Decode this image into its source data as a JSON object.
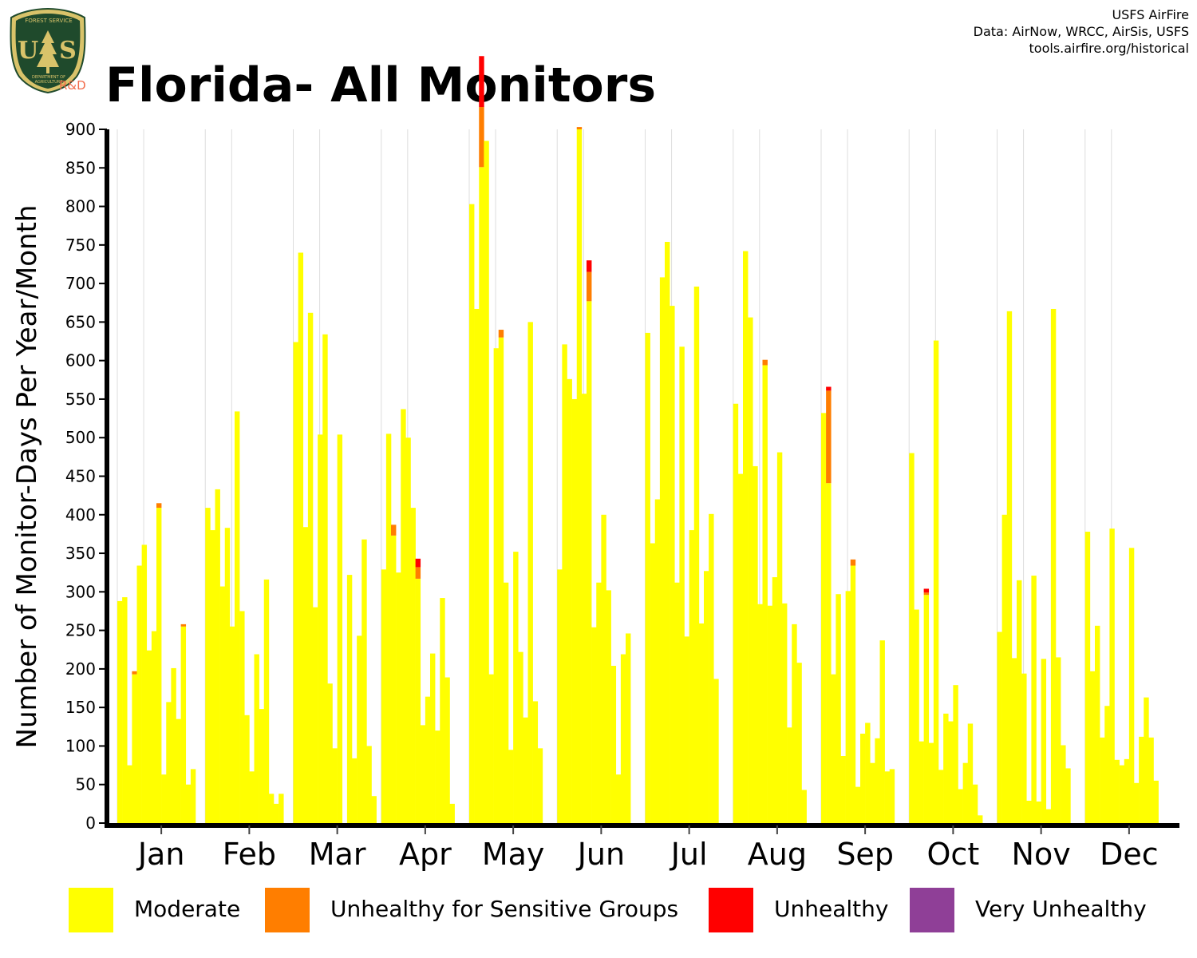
{
  "header": {
    "title": "Florida- All Monitors",
    "credits": [
      "USFS AirFire",
      "Data: AirNow, WRCC, AirSis, USFS",
      "tools.airfire.org/historical"
    ],
    "logo_text": "FOREST SERVICE",
    "logo_letters": "US",
    "logo_bottom_text": "DEPARTMENT OF AGRICULTURE",
    "logo_rd": "R&D"
  },
  "colors": {
    "moderate": "#ffff00",
    "usg": "#ff7e00",
    "unhealthy": "#ff0000",
    "very_unhealthy": "#8f3f97",
    "logo_green": "#1f4a2c",
    "logo_gold": "#d9c36a"
  },
  "legend": [
    {
      "label": "Moderate",
      "color": "#ffff00"
    },
    {
      "label": "Unhealthy for Sensitive Groups",
      "color": "#ff7e00"
    },
    {
      "label": "Unhealthy",
      "color": "#ff0000"
    },
    {
      "label": "Very Unhealthy",
      "color": "#8f3f97"
    }
  ],
  "chart_data": {
    "type": "bar",
    "stacked": true,
    "ylabel": "Number of Monitor-Days Per Year/Month",
    "xlabel": "",
    "ylim": [
      0,
      900
    ],
    "yticks": [
      0,
      50,
      100,
      150,
      200,
      250,
      300,
      350,
      400,
      450,
      500,
      550,
      600,
      650,
      700,
      750,
      800,
      850,
      900
    ],
    "categories": [
      "Jan",
      "Feb",
      "Mar",
      "Apr",
      "May",
      "Jun",
      "Jul",
      "Aug",
      "Sep",
      "Oct",
      "Nov",
      "Dec"
    ],
    "bars_per_month": 18,
    "grid": "vertical",
    "legend_position": "bottom",
    "series": [
      {
        "name": "Moderate",
        "values": [
          [
            288,
            293,
            75,
            193,
            334,
            361,
            224,
            249,
            409,
            63,
            157,
            201,
            135,
            255,
            50,
            70,
            0,
            0
          ],
          [
            409,
            380,
            433,
            307,
            383,
            255,
            534,
            275,
            140,
            67,
            219,
            148,
            316,
            38,
            25,
            38,
            0,
            0
          ],
          [
            624,
            740,
            384,
            662,
            280,
            504,
            634,
            181,
            97,
            504,
            0,
            322,
            84,
            243,
            368,
            100,
            35,
            0
          ],
          [
            329,
            505,
            373,
            325,
            537,
            500,
            409,
            317,
            127,
            164,
            220,
            120,
            292,
            189,
            25,
            0,
            0,
            0
          ],
          [
            803,
            667,
            851,
            885,
            193,
            616,
            630,
            312,
            95,
            352,
            222,
            137,
            650,
            158,
            97,
            0,
            0,
            0
          ],
          [
            329,
            621,
            576,
            550,
            900,
            557,
            677,
            254,
            312,
            400,
            302,
            204,
            63,
            219,
            246,
            0,
            0,
            0
          ],
          [
            636,
            363,
            420,
            708,
            754,
            671,
            312,
            618,
            242,
            380,
            696,
            259,
            327,
            401,
            187,
            0,
            0,
            0
          ],
          [
            544,
            453,
            742,
            656,
            463,
            284,
            594,
            282,
            319,
            481,
            285,
            124,
            258,
            208,
            43,
            0,
            0,
            0
          ],
          [
            532,
            441,
            193,
            297,
            87,
            301,
            334,
            47,
            116,
            130,
            78,
            110,
            237,
            67,
            70,
            0,
            0,
            0
          ],
          [
            480,
            277,
            106,
            296,
            104,
            626,
            69,
            142,
            132,
            179,
            44,
            78,
            129,
            50,
            10,
            0,
            0,
            0
          ],
          [
            248,
            400,
            664,
            214,
            315,
            194,
            29,
            321,
            28,
            213,
            18,
            667,
            215,
            101,
            71,
            0,
            0,
            0
          ],
          [
            378,
            197,
            256,
            111,
            152,
            382,
            82,
            75,
            83,
            357,
            52,
            112,
            163,
            111,
            55,
            0,
            0,
            0
          ]
        ]
      },
      {
        "name": "Unhealthy for Sensitive Groups",
        "values": [
          [
            0,
            0,
            0,
            4,
            0,
            0,
            0,
            0,
            6,
            0,
            0,
            0,
            0,
            3,
            0,
            0,
            0,
            0
          ],
          [
            0,
            0,
            0,
            0,
            0,
            0,
            0,
            0,
            0,
            0,
            0,
            0,
            0,
            0,
            0,
            0,
            0,
            0
          ],
          [
            0,
            0,
            0,
            0,
            0,
            0,
            0,
            0,
            0,
            0,
            0,
            0,
            0,
            0,
            0,
            0,
            0,
            0
          ],
          [
            0,
            0,
            14,
            0,
            0,
            0,
            0,
            15,
            0,
            0,
            0,
            0,
            0,
            0,
            0,
            0,
            0,
            0
          ],
          [
            0,
            0,
            78,
            0,
            0,
            0,
            10,
            0,
            0,
            0,
            0,
            0,
            0,
            0,
            0,
            0,
            0,
            0
          ],
          [
            0,
            0,
            0,
            0,
            3,
            0,
            38,
            0,
            0,
            0,
            0,
            0,
            0,
            0,
            0,
            0,
            0,
            0
          ],
          [
            0,
            0,
            0,
            0,
            0,
            0,
            0,
            0,
            0,
            0,
            0,
            0,
            0,
            0,
            0,
            0,
            0,
            0
          ],
          [
            0,
            0,
            0,
            0,
            0,
            0,
            7,
            0,
            0,
            0,
            0,
            0,
            0,
            0,
            0,
            0,
            0,
            0
          ],
          [
            0,
            120,
            0,
            0,
            0,
            0,
            8,
            0,
            0,
            0,
            0,
            0,
            0,
            0,
            0,
            0,
            0,
            0
          ],
          [
            0,
            0,
            0,
            3,
            0,
            0,
            0,
            0,
            0,
            0,
            0,
            0,
            0,
            0,
            0,
            0,
            0,
            0
          ],
          [
            0,
            0,
            0,
            0,
            0,
            0,
            0,
            0,
            0,
            0,
            0,
            0,
            0,
            0,
            0,
            0,
            0,
            0
          ],
          [
            0,
            0,
            0,
            0,
            0,
            0,
            0,
            0,
            0,
            0,
            0,
            0,
            0,
            0,
            0,
            0,
            0,
            0
          ]
        ]
      },
      {
        "name": "Unhealthy",
        "values": [
          [
            0,
            0,
            0,
            0,
            0,
            0,
            0,
            0,
            0,
            0,
            0,
            0,
            0,
            0,
            0,
            0,
            0,
            0
          ],
          [
            0,
            0,
            0,
            0,
            0,
            0,
            0,
            0,
            0,
            0,
            0,
            0,
            0,
            0,
            0,
            0,
            0,
            0
          ],
          [
            0,
            0,
            0,
            0,
            0,
            0,
            0,
            0,
            0,
            0,
            0,
            0,
            0,
            0,
            0,
            0,
            0,
            0
          ],
          [
            0,
            0,
            0,
            0,
            0,
            0,
            0,
            11,
            0,
            0,
            0,
            0,
            0,
            0,
            0,
            0,
            0,
            0
          ],
          [
            0,
            0,
            66,
            0,
            0,
            0,
            0,
            0,
            0,
            0,
            0,
            0,
            0,
            0,
            0,
            0,
            0,
            0
          ],
          [
            0,
            0,
            0,
            0,
            0,
            0,
            15,
            0,
            0,
            0,
            0,
            0,
            0,
            0,
            0,
            0,
            0,
            0
          ],
          [
            0,
            0,
            0,
            0,
            0,
            0,
            0,
            0,
            0,
            0,
            0,
            0,
            0,
            0,
            0,
            0,
            0,
            0
          ],
          [
            0,
            0,
            0,
            0,
            0,
            0,
            0,
            0,
            0,
            0,
            0,
            0,
            0,
            0,
            0,
            0,
            0,
            0
          ],
          [
            0,
            5,
            0,
            0,
            0,
            0,
            0,
            0,
            0,
            0,
            0,
            0,
            0,
            0,
            0,
            0,
            0,
            0
          ],
          [
            0,
            0,
            0,
            5,
            0,
            0,
            0,
            0,
            0,
            0,
            0,
            0,
            0,
            0,
            0,
            0,
            0,
            0
          ],
          [
            0,
            0,
            0,
            0,
            0,
            0,
            0,
            0,
            0,
            0,
            0,
            0,
            0,
            0,
            0,
            0,
            0,
            0
          ],
          [
            0,
            0,
            0,
            0,
            0,
            0,
            0,
            0,
            0,
            0,
            0,
            0,
            0,
            0,
            0,
            0,
            0,
            0
          ]
        ]
      },
      {
        "name": "Very Unhealthy",
        "values": [
          [
            0,
            0,
            0,
            0,
            0,
            0,
            0,
            0,
            0,
            0,
            0,
            0,
            0,
            0,
            0,
            0,
            0,
            0
          ],
          [
            0,
            0,
            0,
            0,
            0,
            0,
            0,
            0,
            0,
            0,
            0,
            0,
            0,
            0,
            0,
            0,
            0,
            0
          ],
          [
            0,
            0,
            0,
            0,
            0,
            0,
            0,
            0,
            0,
            0,
            0,
            0,
            0,
            0,
            0,
            0,
            0,
            0
          ],
          [
            0,
            0,
            0,
            0,
            0,
            0,
            0,
            0,
            0,
            0,
            0,
            0,
            0,
            0,
            0,
            0,
            0,
            0
          ],
          [
            0,
            0,
            0,
            0,
            0,
            0,
            0,
            0,
            0,
            0,
            0,
            0,
            0,
            0,
            0,
            0,
            0,
            0
          ],
          [
            0,
            0,
            0,
            0,
            0,
            0,
            0,
            0,
            0,
            0,
            0,
            0,
            0,
            0,
            0,
            0,
            0,
            0
          ],
          [
            0,
            0,
            0,
            0,
            0,
            0,
            0,
            0,
            0,
            0,
            0,
            0,
            0,
            0,
            0,
            0,
            0,
            0
          ],
          [
            0,
            0,
            0,
            0,
            0,
            0,
            0,
            0,
            0,
            0,
            0,
            0,
            0,
            0,
            0,
            0,
            0,
            0
          ],
          [
            0,
            0,
            0,
            0,
            0,
            0,
            0,
            0,
            0,
            0,
            0,
            0,
            0,
            0,
            0,
            0,
            0,
            0
          ],
          [
            0,
            0,
            0,
            0,
            0,
            0,
            0,
            0,
            0,
            0,
            0,
            0,
            0,
            0,
            0,
            0,
            0,
            0
          ],
          [
            0,
            0,
            0,
            0,
            0,
            0,
            0,
            0,
            0,
            0,
            0,
            0,
            0,
            0,
            0,
            0,
            0,
            0
          ],
          [
            0,
            0,
            0,
            0,
            0,
            0,
            0,
            0,
            0,
            0,
            0,
            0,
            0,
            0,
            0,
            0,
            0,
            0
          ]
        ]
      }
    ]
  }
}
